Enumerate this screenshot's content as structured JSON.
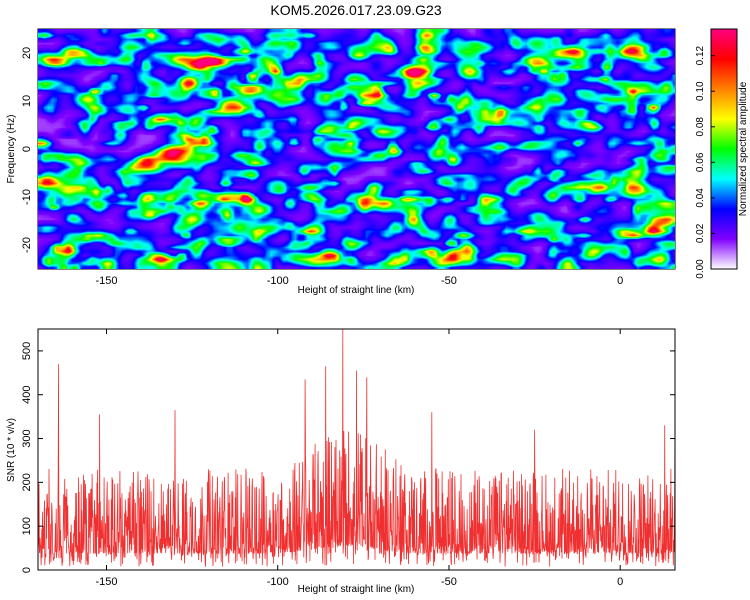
{
  "chart_data": [
    {
      "type": "heatmap",
      "title": "KOM5.2026.017.23.09.G23",
      "xlabel": "Height of straight line (km)",
      "ylabel": "Frequency (Hz)",
      "xlim": [
        -170,
        16
      ],
      "ylim": [
        -25,
        25
      ],
      "x_ticks": [
        -150,
        -100,
        -50,
        0
      ],
      "y_ticks": [
        -20,
        -10,
        0,
        10,
        20
      ],
      "colorbar": {
        "label": "Normalized spectral amplitude",
        "range": [
          0,
          0.135
        ],
        "ticks": [
          "0.00",
          "0.02",
          "0.04",
          "0.06",
          "0.08",
          "0.10",
          "0.12"
        ],
        "colors": [
          "#ffffff",
          "#8000ff",
          "#0000ff",
          "#00ffff",
          "#00ff00",
          "#ffff00",
          "#ff8000",
          "#ff0000",
          "#ff0080"
        ]
      },
      "hotspots": [
        {
          "x": 3,
          "y": 12.5,
          "v": 0.13
        },
        {
          "x": 9,
          "y": 9,
          "v": 0.12
        },
        {
          "x": -108,
          "y": 15.5,
          "v": 0.11
        },
        {
          "x": -154,
          "y": 12.5,
          "v": 0.1
        },
        {
          "x": -23,
          "y": 16.5,
          "v": 0.1
        },
        {
          "x": -120,
          "y": 4.5,
          "v": 0.09
        },
        {
          "x": -55,
          "y": 11.5,
          "v": 0.09
        },
        {
          "x": -166,
          "y": -11.5,
          "v": 0.08
        },
        {
          "x": -40,
          "y": -13,
          "v": 0.08
        },
        {
          "x": -20,
          "y": -18,
          "v": 0.09
        },
        {
          "x": -50,
          "y": -19,
          "v": 0.08
        },
        {
          "x": -130,
          "y": -8,
          "v": 0.07
        },
        {
          "x": -96,
          "y": 2,
          "v": 0.06
        },
        {
          "x": 12,
          "y": 0,
          "v": 0.07
        },
        {
          "x": -70,
          "y": 21,
          "v": 0.07
        },
        {
          "x": -160,
          "y": -24,
          "v": 0.07
        },
        {
          "x": -10,
          "y": -21,
          "v": 0.07
        },
        {
          "x": -140,
          "y": 9,
          "v": 0.06
        }
      ]
    },
    {
      "type": "line",
      "title": "",
      "xlabel": "Height of straight line (km)",
      "ylabel": "SNR (10 * v/v)",
      "xlim": [
        -170,
        16
      ],
      "ylim": [
        0,
        550
      ],
      "x_ticks": [
        -150,
        -100,
        -50,
        0
      ],
      "y_ticks": [
        0,
        100,
        200,
        300,
        400,
        500
      ],
      "color": "#f03030",
      "baseline_snr": 150,
      "x_step_km": 0.1,
      "peaks": [
        {
          "x": -164,
          "y": 470
        },
        {
          "x": -152,
          "y": 355
        },
        {
          "x": -130,
          "y": 365
        },
        {
          "x": -92,
          "y": 435
        },
        {
          "x": -86,
          "y": 465
        },
        {
          "x": -81,
          "y": 550
        },
        {
          "x": -77,
          "y": 455
        },
        {
          "x": -74,
          "y": 440
        },
        {
          "x": -55,
          "y": 360
        },
        {
          "x": -25,
          "y": 320
        },
        {
          "x": 13,
          "y": 330
        },
        {
          "x": 16,
          "y": 365
        }
      ]
    }
  ]
}
